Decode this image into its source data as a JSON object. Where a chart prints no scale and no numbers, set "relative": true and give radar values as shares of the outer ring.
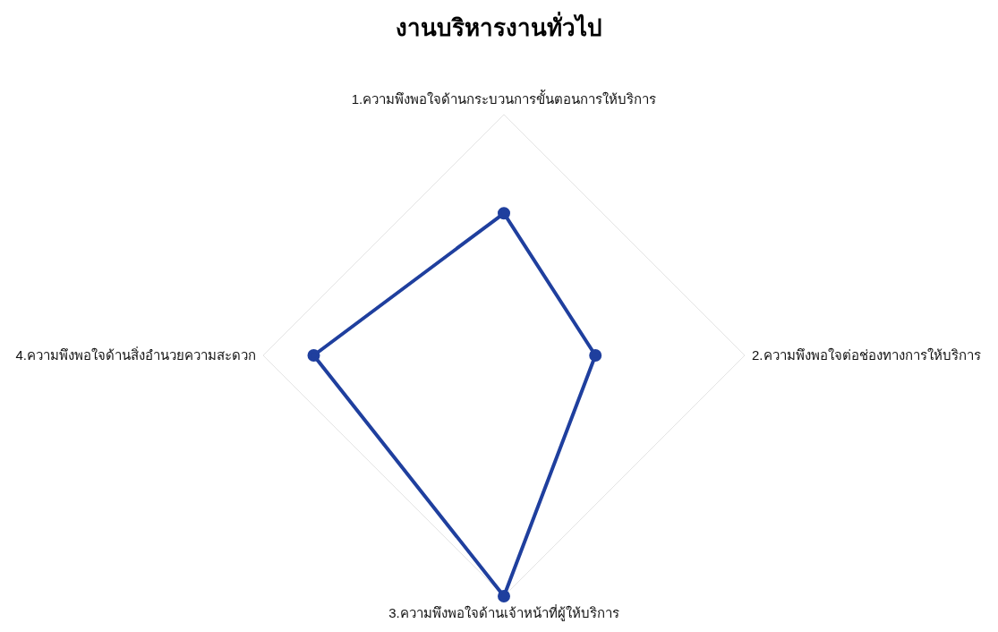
{
  "chart_data": {
    "type": "radar",
    "title": "งานบริหารงานทั่วไป",
    "relative": true,
    "grid": true,
    "marker": "circle",
    "categories": [
      "1.ความพึงพอใจด้านกระบวนการขั้นตอนการให้บริการ",
      "2.ความพึงพอใจต่อช่องทางการให้บริการ",
      "3.ความพึงพอใจด้านเจ้าหน้าที่ผู้ให้บริการ",
      "4.ความพึงพอใจด้านสิ่งอำนวยความสะดวก"
    ],
    "series": [
      {
        "color": "#1f3f9e",
        "values": [
          0.59,
          0.38,
          1,
          0.79
        ]
      }
    ]
  }
}
